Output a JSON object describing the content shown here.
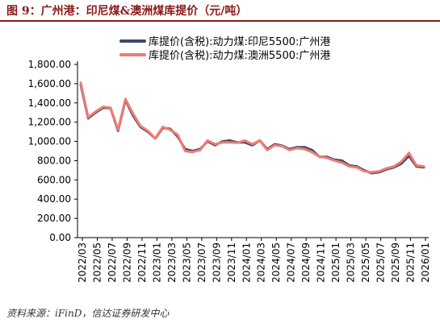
{
  "figure": {
    "title": "图 9：广州港：印尼煤&澳洲煤库提价（元/吨）",
    "source": "资料来源：iFinD，信达证券研发中心"
  },
  "chart_data": {
    "type": "line",
    "title": "",
    "xlabel": "",
    "ylabel": "",
    "ylim": [
      0,
      1800
    ],
    "yticks": [
      "0.00",
      "200.00",
      "400.00",
      "600.00",
      "800.00",
      "1,000.00",
      "1,200.00",
      "1,400.00",
      "1,600.00",
      "1,800.00"
    ],
    "ytick_values": [
      0,
      200,
      400,
      600,
      800,
      1000,
      1200,
      1400,
      1600,
      1800
    ],
    "xticks": [
      "2022/03",
      "2022/05",
      "2022/07",
      "2022/09",
      "2022/11",
      "2023/01",
      "2023/03",
      "2023/05",
      "2023/07",
      "2023/09",
      "2023/11",
      "2024/01",
      "2024/03",
      "2024/05",
      "2024/07",
      "2024/09",
      "2024/11",
      "2025/01",
      "2025/03",
      "2025/05",
      "2025/07",
      "2025/09",
      "2025/11",
      "2026/01"
    ],
    "grid": false,
    "legend_position": "top",
    "x": [
      "2022/03",
      "2022/04",
      "2022/05",
      "2022/06",
      "2022/07",
      "2022/08",
      "2022/09",
      "2022/10",
      "2022/11",
      "2022/12",
      "2023/01",
      "2023/02",
      "2023/03",
      "2023/04",
      "2023/05",
      "2023/06",
      "2023/07",
      "2023/08",
      "2023/09",
      "2023/10",
      "2023/11",
      "2023/12",
      "2024/01",
      "2024/02",
      "2024/03",
      "2024/04",
      "2024/05",
      "2024/06",
      "2024/07",
      "2024/08",
      "2024/09",
      "2024/10",
      "2024/11",
      "2024/12",
      "2025/01",
      "2025/02",
      "2025/03",
      "2025/04",
      "2025/05",
      "2025/06",
      "2025/07",
      "2025/08",
      "2025/09",
      "2025/10",
      "2025/11",
      "2025/12",
      "2026/01"
    ],
    "series": [
      {
        "name": "库提价(含税):动力煤:印尼5500:广州港",
        "color": "#3D4A6B",
        "values": [
          1590,
          1240,
          1300,
          1350,
          1345,
          1110,
          1430,
          1270,
          1150,
          1100,
          1030,
          1140,
          1130,
          1050,
          920,
          900,
          920,
          1000,
          960,
          1000,
          1010,
          990,
          990,
          960,
          1010,
          920,
          970,
          955,
          920,
          940,
          940,
          910,
          840,
          840,
          810,
          800,
          750,
          740,
          700,
          670,
          680,
          710,
          730,
          770,
          850,
          740,
          730
        ]
      },
      {
        "name": "库提价(含税):动力煤:澳洲5500:广州港",
        "color": "#F07B73",
        "values": [
          1610,
          1250,
          1310,
          1360,
          1350,
          1120,
          1440,
          1290,
          1160,
          1110,
          1030,
          1150,
          1120,
          1070,
          900,
          890,
          910,
          1010,
          970,
          990,
          990,
          985,
          1010,
          970,
          1010,
          910,
          960,
          950,
          910,
          930,
          920,
          890,
          840,
          830,
          800,
          780,
          740,
          730,
          690,
          680,
          690,
          720,
          740,
          790,
          880,
          750,
          740
        ]
      }
    ]
  }
}
